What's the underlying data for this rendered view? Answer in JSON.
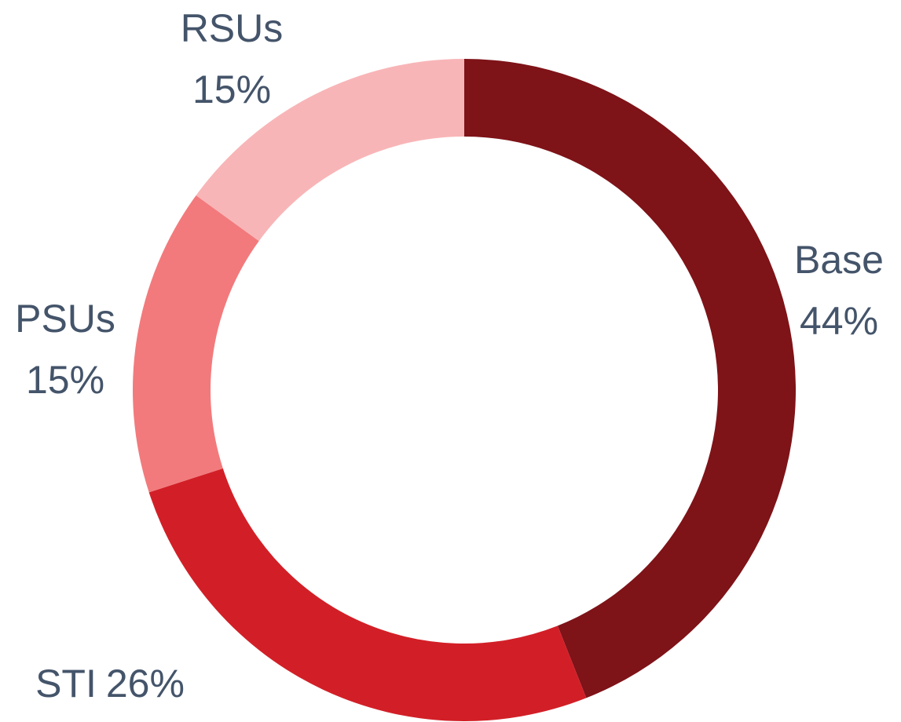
{
  "chart_data": {
    "type": "donut",
    "categories": [
      "Base",
      "STI",
      "PSUs",
      "RSUs"
    ],
    "values": [
      44,
      26,
      15,
      15
    ],
    "value_labels": [
      "44%",
      "26%",
      "15%",
      "15%"
    ],
    "colors": [
      "#7e1318",
      "#d21f27",
      "#f27a7c",
      "#f8b5b7"
    ]
  }
}
